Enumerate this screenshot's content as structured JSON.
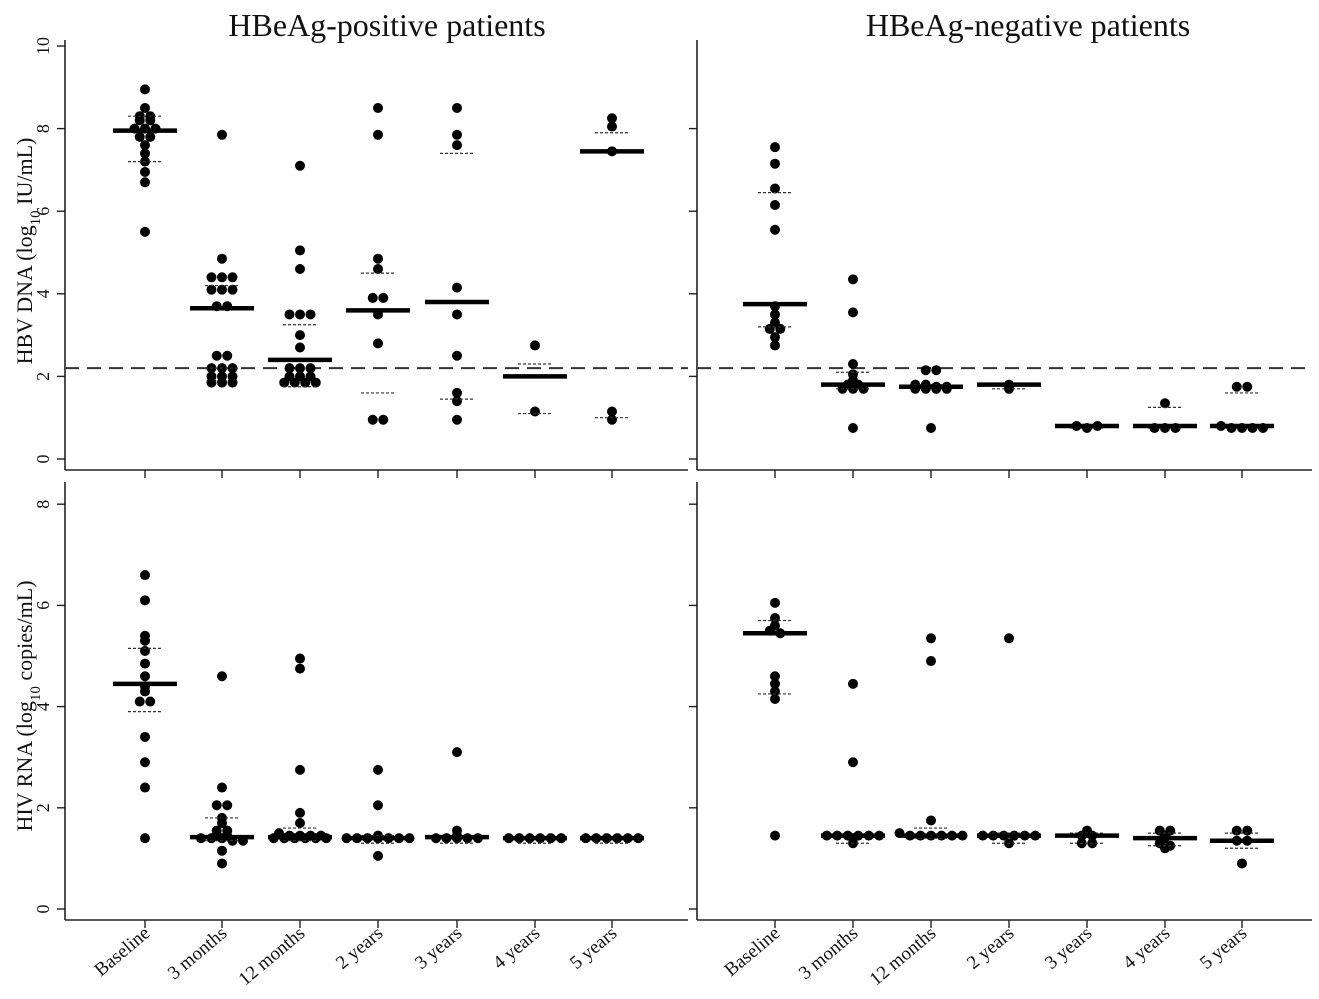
{
  "chart_data": [
    {
      "type": "scatter",
      "panel": "top-left",
      "title": "HBeAg-positive patients",
      "ylabel_main": "HBV DNA (log",
      "ylabel_sub": "10",
      "ylabel_end": " IU/mL)",
      "ylim": [
        0,
        10
      ],
      "yticks": [
        "0",
        "2",
        "4",
        "6",
        "8",
        "10"
      ],
      "yticks_values": [
        0,
        2,
        4,
        6,
        8,
        10
      ],
      "reference_line": 2.2,
      "categories": [
        "Baseline",
        "3 months",
        "12 months",
        "2 years",
        "3 years",
        "4 years",
        "5 years"
      ],
      "points": [
        [
          8.95,
          8.5,
          8.3,
          8.3,
          8.2,
          8.2,
          8.0,
          8.0,
          8.0,
          7.8,
          7.8,
          7.6,
          7.4,
          7.2,
          6.95,
          6.7,
          5.5
        ],
        [
          7.85,
          4.85,
          4.4,
          4.4,
          4.4,
          4.1,
          4.1,
          4.1,
          3.7,
          3.7,
          2.5,
          2.5,
          2.2,
          2.2,
          2.2,
          2.0,
          2.0,
          2.0,
          1.85,
          1.85,
          1.85
        ],
        [
          7.1,
          5.05,
          4.6,
          3.5,
          3.5,
          3.5,
          3.0,
          2.7,
          2.2,
          2.2,
          2.2,
          2.0,
          2.0,
          2.0,
          1.85,
          1.85,
          1.85,
          1.85
        ],
        [
          8.5,
          7.85,
          4.85,
          4.6,
          3.9,
          3.9,
          3.5,
          2.8,
          0.95,
          0.95
        ],
        [
          8.5,
          7.85,
          7.6,
          4.15,
          3.5,
          2.5,
          1.6,
          1.4,
          0.95
        ],
        [
          2.75,
          1.15
        ],
        [
          8.25,
          8.05,
          7.45,
          1.15,
          0.95
        ]
      ],
      "medians": [
        7.95,
        3.65,
        2.4,
        3.6,
        3.8,
        2.0,
        7.45
      ],
      "q1": [
        7.2,
        2.2,
        1.75,
        1.6,
        1.45,
        1.1,
        1.0
      ],
      "q3": [
        8.3,
        4.2,
        3.25,
        4.5,
        7.4,
        2.3,
        7.9
      ]
    },
    {
      "type": "scatter",
      "panel": "top-right",
      "title": "HBeAg-negative patients",
      "ylim": [
        0,
        10
      ],
      "yticks_values": [
        0,
        2,
        4,
        6,
        8
      ],
      "reference_line": 2.2,
      "categories": [
        "Baseline",
        "3 months",
        "12 months",
        "2 years",
        "3 years",
        "4 years",
        "5 years"
      ],
      "points": [
        [
          7.55,
          7.15,
          6.55,
          6.15,
          5.55,
          3.7,
          3.5,
          3.3,
          3.15,
          3.15,
          2.95,
          2.75
        ],
        [
          4.35,
          3.55,
          2.3,
          2.05,
          1.9,
          1.8,
          1.8,
          1.7,
          1.7,
          1.7,
          0.75
        ],
        [
          2.15,
          2.15,
          1.8,
          1.8,
          1.75,
          1.75,
          1.7,
          1.7,
          1.7,
          1.7,
          0.75
        ],
        [
          1.8,
          1.7
        ],
        [
          0.8,
          0.75,
          0.8
        ],
        [
          1.35,
          0.75,
          0.75,
          0.75
        ],
        [
          1.75,
          1.75,
          0.8,
          0.75,
          0.75,
          0.75,
          0.75
        ]
      ],
      "medians": [
        3.75,
        1.8,
        1.75,
        1.8,
        0.8,
        0.8,
        0.8
      ],
      "q1": [
        3.2,
        1.7,
        1.7,
        1.7,
        0.75,
        0.75,
        0.75
      ],
      "q3": [
        6.45,
        2.1,
        1.8,
        1.8,
        0.8,
        1.25,
        1.6
      ]
    },
    {
      "type": "scatter",
      "panel": "bottom-left",
      "ylabel_main": "HIV RNA (log",
      "ylabel_sub": "10",
      "ylabel_end": " copies/mL)",
      "ylim": [
        0,
        8
      ],
      "yticks": [
        "0",
        "2",
        "4",
        "6",
        "8"
      ],
      "yticks_values": [
        0,
        2,
        4,
        6,
        8
      ],
      "categories": [
        "Baseline",
        "3 months",
        "12 months",
        "2 years",
        "3 years",
        "4 years",
        "5 years"
      ],
      "points": [
        [
          6.6,
          6.1,
          5.4,
          5.3,
          5.1,
          4.85,
          4.6,
          4.4,
          4.3,
          4.1,
          4.1,
          3.4,
          2.9,
          2.4,
          1.4
        ],
        [
          4.6,
          2.4,
          2.05,
          2.05,
          1.8,
          1.7,
          1.55,
          1.55,
          1.45,
          1.45,
          1.4,
          1.4,
          1.4,
          1.35,
          1.35,
          1.15,
          0.9
        ],
        [
          4.95,
          4.75,
          2.75,
          1.9,
          1.7,
          1.5,
          1.45,
          1.45,
          1.45,
          1.45,
          1.4,
          1.4,
          1.4,
          1.4,
          1.4,
          1.4
        ],
        [
          2.75,
          2.05,
          1.45,
          1.4,
          1.4,
          1.4,
          1.4,
          1.4,
          1.4,
          1.4,
          1.05
        ],
        [
          3.1,
          1.55,
          1.45,
          1.4,
          1.4,
          1.4,
          1.4,
          1.4
        ],
        [
          1.4,
          1.4,
          1.4,
          1.4,
          1.4,
          1.4
        ],
        [
          1.4,
          1.4,
          1.4,
          1.4,
          1.4,
          1.4
        ]
      ],
      "medians": [
        4.45,
        1.42,
        1.42,
        1.4,
        1.42,
        1.4,
        1.4
      ],
      "q1": [
        3.9,
        1.35,
        1.35,
        1.3,
        1.3,
        1.3,
        1.3
      ],
      "q3": [
        5.15,
        1.8,
        1.6,
        1.45,
        1.45,
        1.4,
        1.4
      ]
    },
    {
      "type": "scatter",
      "panel": "bottom-right",
      "ylim": [
        0,
        8
      ],
      "yticks_values": [
        0,
        2,
        4,
        6,
        8
      ],
      "categories": [
        "Baseline",
        "3 months",
        "12 months",
        "2 years",
        "3 years",
        "4 years",
        "5 years"
      ],
      "points": [
        [
          6.05,
          5.75,
          5.6,
          5.5,
          5.45,
          4.6,
          4.45,
          4.3,
          4.15,
          1.45
        ],
        [
          4.45,
          2.9,
          1.45,
          1.45,
          1.45,
          1.45,
          1.45,
          1.45,
          1.4,
          1.3
        ],
        [
          5.35,
          4.9,
          1.75,
          1.5,
          1.45,
          1.45,
          1.45,
          1.45,
          1.45,
          1.45
        ],
        [
          5.35,
          1.45,
          1.45,
          1.45,
          1.45,
          1.45,
          1.45,
          1.3
        ],
        [
          1.55,
          1.45,
          1.45,
          1.3,
          1.3
        ],
        [
          1.55,
          1.55,
          1.45,
          1.4,
          1.3,
          1.25,
          1.2
        ],
        [
          1.55,
          1.55,
          1.35,
          1.35,
          0.9
        ]
      ],
      "medians": [
        5.45,
        1.45,
        1.45,
        1.45,
        1.45,
        1.4,
        1.35
      ],
      "q1": [
        4.25,
        1.3,
        1.4,
        1.3,
        1.3,
        1.25,
        1.2
      ],
      "q3": [
        5.7,
        1.45,
        1.6,
        1.5,
        1.5,
        1.5,
        1.5
      ]
    }
  ]
}
